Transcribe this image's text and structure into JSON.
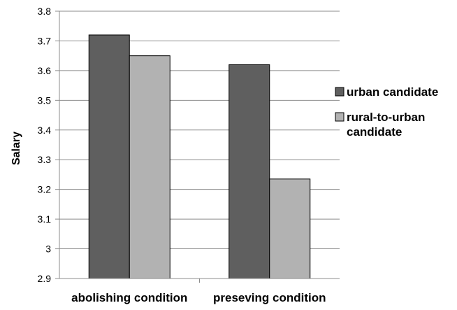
{
  "chart_data": {
    "type": "bar",
    "title": "",
    "xlabel": "",
    "ylabel": "Salary",
    "ylim": [
      2.9,
      3.8
    ],
    "yticks": [
      "2.9",
      "3",
      "3.1",
      "3.2",
      "3.3",
      "3.4",
      "3.5",
      "3.6",
      "3.7",
      "3.8"
    ],
    "categories": [
      "abolishing condition",
      "preseving condition"
    ],
    "series": [
      {
        "name": "urban candidate",
        "values": [
          3.72,
          3.62
        ],
        "color": "#5f5f5f"
      },
      {
        "name": "rural-to-urban candidate",
        "values": [
          3.65,
          3.235
        ],
        "color": "#b2b2b2"
      }
    ],
    "grid": true,
    "legend_position": "right"
  }
}
